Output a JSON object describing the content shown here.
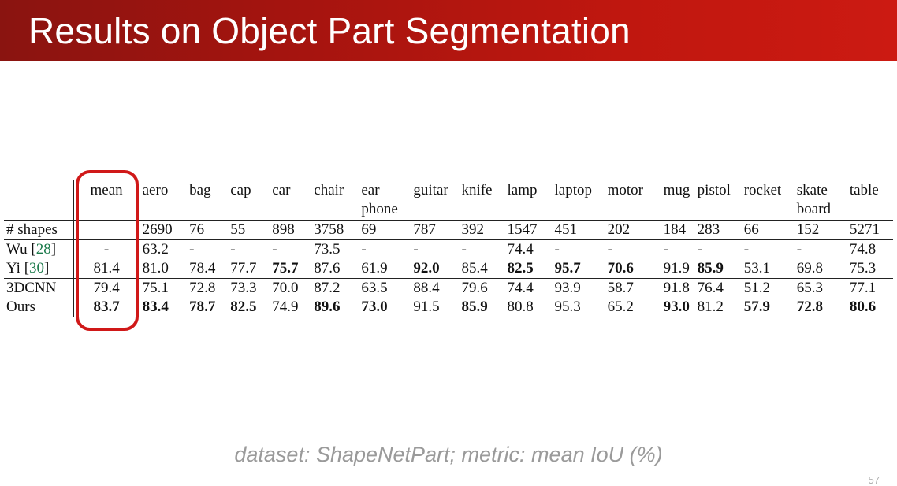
{
  "slide": {
    "title": "Results on Object Part Segmentation",
    "caption": "dataset: ShapeNetPart; metric: mean IoU (%)",
    "page_number": "57",
    "banner_color": "#b5160f",
    "highlight_color": "#d01818"
  },
  "table": {
    "header": {
      "method": "",
      "mean": "mean",
      "categories": [
        {
          "line1": "aero",
          "line2": ""
        },
        {
          "line1": "bag",
          "line2": ""
        },
        {
          "line1": "cap",
          "line2": ""
        },
        {
          "line1": "car",
          "line2": ""
        },
        {
          "line1": "chair",
          "line2": ""
        },
        {
          "line1": "ear",
          "line2": "phone"
        },
        {
          "line1": "guitar",
          "line2": ""
        },
        {
          "line1": "knife",
          "line2": ""
        },
        {
          "line1": "lamp",
          "line2": ""
        },
        {
          "line1": "laptop",
          "line2": ""
        },
        {
          "line1": "motor",
          "line2": ""
        },
        {
          "line1": "mug",
          "line2": ""
        },
        {
          "line1": "pistol",
          "line2": ""
        },
        {
          "line1": "rocket",
          "line2": ""
        },
        {
          "line1": "skate",
          "line2": "board"
        },
        {
          "line1": "table",
          "line2": ""
        }
      ]
    },
    "rows": [
      {
        "method": "# shapes",
        "ref": "",
        "mean": "",
        "values": [
          "2690",
          "76",
          "55",
          "898",
          "3758",
          "69",
          "787",
          "392",
          "1547",
          "451",
          "202",
          "184",
          "283",
          "66",
          "152",
          "5271"
        ]
      },
      {
        "method": "Wu [",
        "ref": "28",
        "ref_close": "]",
        "mean": "-",
        "values": [
          "63.2",
          "-",
          "-",
          "-",
          "73.5",
          "-",
          "-",
          "-",
          "74.4",
          "-",
          "-",
          "-",
          "-",
          "-",
          "-",
          "74.8"
        ]
      },
      {
        "method": "Yi [",
        "ref": "30",
        "ref_close": "]",
        "mean": "81.4",
        "values": [
          "81.0",
          "78.4",
          "77.7",
          "75.7",
          "87.6",
          "61.9",
          "92.0",
          "85.4",
          "82.5",
          "95.7",
          "70.6",
          "91.9",
          "85.9",
          "53.1",
          "69.8",
          "75.3"
        ]
      },
      {
        "method": "3DCNN",
        "ref": "",
        "mean": "79.4",
        "values": [
          "75.1",
          "72.8",
          "73.3",
          "70.0",
          "87.2",
          "63.5",
          "88.4",
          "79.6",
          "74.4",
          "93.9",
          "58.7",
          "91.8",
          "76.4",
          "51.2",
          "65.3",
          "77.1"
        ]
      },
      {
        "method": "Ours",
        "ref": "",
        "mean": "83.7",
        "values": [
          "83.4",
          "78.7",
          "82.5",
          "74.9",
          "89.6",
          "73.0",
          "91.5",
          "85.9",
          "80.8",
          "95.3",
          "65.2",
          "93.0",
          "81.2",
          "57.9",
          "72.8",
          "80.6"
        ]
      }
    ]
  }
}
